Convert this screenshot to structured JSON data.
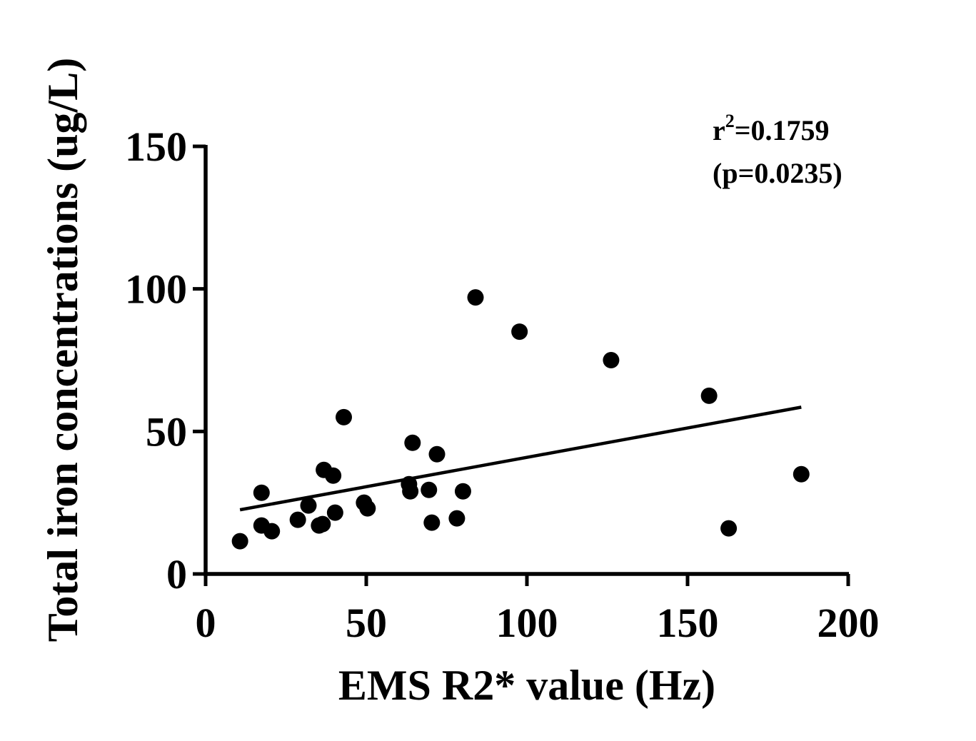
{
  "chart_data": {
    "type": "scatter",
    "xlabel": "EMS R2* value (Hz)",
    "ylabel": "Total iron concentrations (ug/L)",
    "xlim": [
      0,
      200
    ],
    "ylim": [
      0,
      150
    ],
    "x_ticks": [
      0,
      50,
      100,
      150,
      200
    ],
    "y_ticks": [
      0,
      50,
      100,
      150
    ],
    "x_tick_labels": [
      "0",
      "50",
      "100",
      "150",
      "200"
    ],
    "y_tick_labels": [
      "0",
      "50",
      "100",
      "150"
    ],
    "grid": false,
    "points": [
      {
        "x": 10.7,
        "y": 11.5
      },
      {
        "x": 17.4,
        "y": 28.5
      },
      {
        "x": 17.4,
        "y": 17.0
      },
      {
        "x": 20.6,
        "y": 15.0
      },
      {
        "x": 28.7,
        "y": 19.0
      },
      {
        "x": 32.0,
        "y": 24.0
      },
      {
        "x": 35.3,
        "y": 17.0
      },
      {
        "x": 36.4,
        "y": 17.5
      },
      {
        "x": 36.8,
        "y": 36.5
      },
      {
        "x": 39.7,
        "y": 34.5
      },
      {
        "x": 40.3,
        "y": 21.5
      },
      {
        "x": 43.0,
        "y": 55.0
      },
      {
        "x": 49.3,
        "y": 25.0
      },
      {
        "x": 50.4,
        "y": 23.0
      },
      {
        "x": 63.3,
        "y": 31.5
      },
      {
        "x": 63.7,
        "y": 29.0
      },
      {
        "x": 64.4,
        "y": 46.0
      },
      {
        "x": 69.5,
        "y": 29.5
      },
      {
        "x": 70.4,
        "y": 18.0
      },
      {
        "x": 72.0,
        "y": 42.0
      },
      {
        "x": 78.2,
        "y": 19.5
      },
      {
        "x": 80.1,
        "y": 29.0
      },
      {
        "x": 84.0,
        "y": 97.0
      },
      {
        "x": 97.7,
        "y": 85.0
      },
      {
        "x": 126.2,
        "y": 75.0
      },
      {
        "x": 156.7,
        "y": 62.5
      },
      {
        "x": 162.8,
        "y": 16.0
      },
      {
        "x": 185.4,
        "y": 35.0
      }
    ],
    "fit_line": {
      "x": [
        10.7,
        185.4
      ],
      "y": [
        22.5,
        58.5
      ]
    },
    "annotation": {
      "r2_prefix": "r",
      "r2_sup": "2",
      "r2_value": "=0.1759",
      "p_value": "(p=0.0235)"
    }
  }
}
